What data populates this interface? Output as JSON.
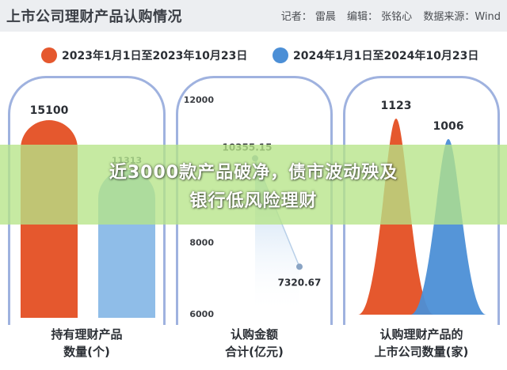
{
  "page": {
    "title": "上市公司理财产品认购情况",
    "credits": {
      "reporter": "记者： 雷晨",
      "editor": "编辑： 张铭心",
      "source": "数据来源：Wind"
    }
  },
  "legend": [
    {
      "label": "2023年1月1日至2023年10月23日",
      "color": "#e5582e"
    },
    {
      "label": "2024年1月1日至2024年10月23日",
      "color": "#4c8fd6"
    }
  ],
  "banner": {
    "line1": "近3000款产品破净，债市波动殃及",
    "line2": "银行低风险理财"
  },
  "chart_data": [
    {
      "type": "bar",
      "title": "持有理财产品数量(个)",
      "categories": [
        "2023年1月1日至2023年10月23日",
        "2024年1月1日至2024年10月23日"
      ],
      "values": [
        15100,
        11313
      ],
      "value_labels": [
        "15100",
        "11313"
      ],
      "colors": [
        "#e5582e",
        "#8fbde8"
      ],
      "ylim": [
        0,
        15100
      ],
      "caption": [
        "持有理财产品",
        "数量(个)"
      ]
    },
    {
      "type": "line",
      "title": "认购金额合计(亿元)",
      "x": [
        "2023年1月1日至2023年10月23日",
        "2024年1月1日至2024年10月23日"
      ],
      "values": [
        10355.15,
        7320.67
      ],
      "value_labels": [
        "10355.15",
        "7320.67"
      ],
      "yticks": [
        "12000",
        "8000",
        "6000"
      ],
      "ytick_values": [
        12000,
        8000,
        6000
      ],
      "ylim": [
        6000,
        12000
      ],
      "caption": [
        "认购金额",
        "合计(亿元)"
      ]
    },
    {
      "type": "area",
      "title": "认购理财产品的上市公司数量(家)",
      "categories": [
        "2023年1月1日至2023年10月23日",
        "2024年1月1日至2024年10月23日"
      ],
      "values": [
        1123,
        1006
      ],
      "value_labels": [
        "1123",
        "1006"
      ],
      "colors": [
        "#e5582e",
        "#4c8fd6"
      ],
      "ylim": [
        0,
        1123
      ],
      "caption": [
        "认购理财产品的",
        "上市公司数量(家)"
      ]
    }
  ]
}
